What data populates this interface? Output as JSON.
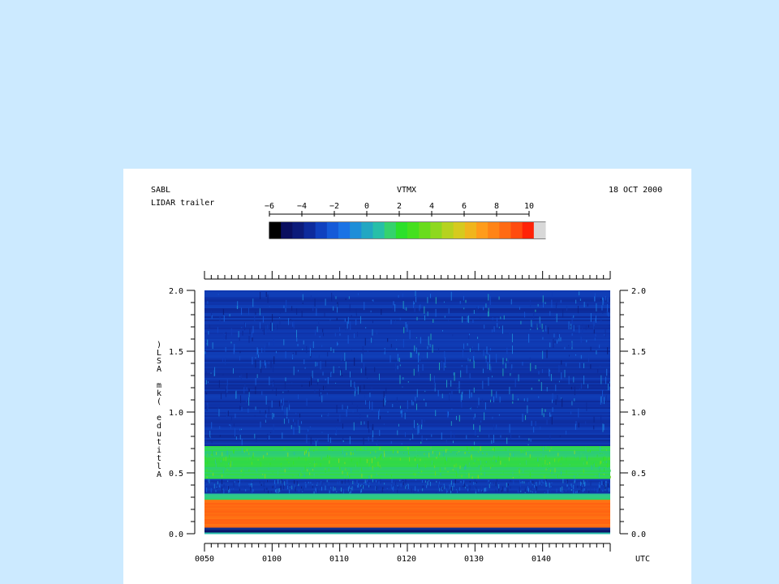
{
  "header": {
    "left_title": "SABL",
    "left_subtitle": "LIDAR trailer",
    "center_title": "VTMX",
    "right_title": "18 OCT 2000"
  },
  "colorbar": {
    "tick_labels": [
      "−6",
      "−4",
      "−2",
      "0",
      "2",
      "4",
      "6",
      "8",
      "10"
    ],
    "range": [
      -6,
      10
    ],
    "colors": [
      "#000000",
      "#0a0f5f",
      "#0c1b7a",
      "#0d2b9c",
      "#1041bf",
      "#155ad8",
      "#1a73e5",
      "#1e8ed8",
      "#22a7c2",
      "#27bfa8",
      "#35d26d",
      "#2ce02b",
      "#45e01f",
      "#69dc1d",
      "#8ed81f",
      "#b6d21f",
      "#d6ca1e",
      "#f0b51d",
      "#ff9c1b",
      "#ff8416",
      "#ff6a13",
      "#ff4c10",
      "#ff2308",
      "#d8d8d8"
    ]
  },
  "chart_data": {
    "type": "heatmap",
    "title": "VTMX",
    "xlabel": "UTC",
    "ylabel": "Altitude (km ASL)",
    "x_ticks": [
      "0050",
      "0100",
      "0110",
      "0120",
      "0130",
      "0140"
    ],
    "y_ticks": [
      "0.0",
      "0.5",
      "1.0",
      "1.5",
      "2.0"
    ],
    "ylim": [
      0,
      2
    ],
    "color_range": [
      -6,
      10
    ],
    "layers": [
      {
        "name": "near-surface dark blue",
        "ymin": 0.0,
        "ymax": 0.03,
        "value": -5
      },
      {
        "name": "surface-layer orange-red",
        "ymin": 0.05,
        "ymax": 0.28,
        "value": 8.5
      },
      {
        "name": "thin cyan-green",
        "ymin": 0.28,
        "ymax": 0.33,
        "value": 1
      },
      {
        "name": "dark blue gap",
        "ymin": 0.33,
        "ymax": 0.45,
        "value": -3.5
      },
      {
        "name": "green layer",
        "ymin": 0.45,
        "ymax": 0.72,
        "value": 1.5
      },
      {
        "name": "upper blue",
        "ymin": 0.72,
        "ymax": 2.0,
        "value": -3.5
      }
    ]
  },
  "icons": {
    "colorbar_swatch": "colorbar-swatch",
    "heatmap": "lidar-heatmap"
  }
}
